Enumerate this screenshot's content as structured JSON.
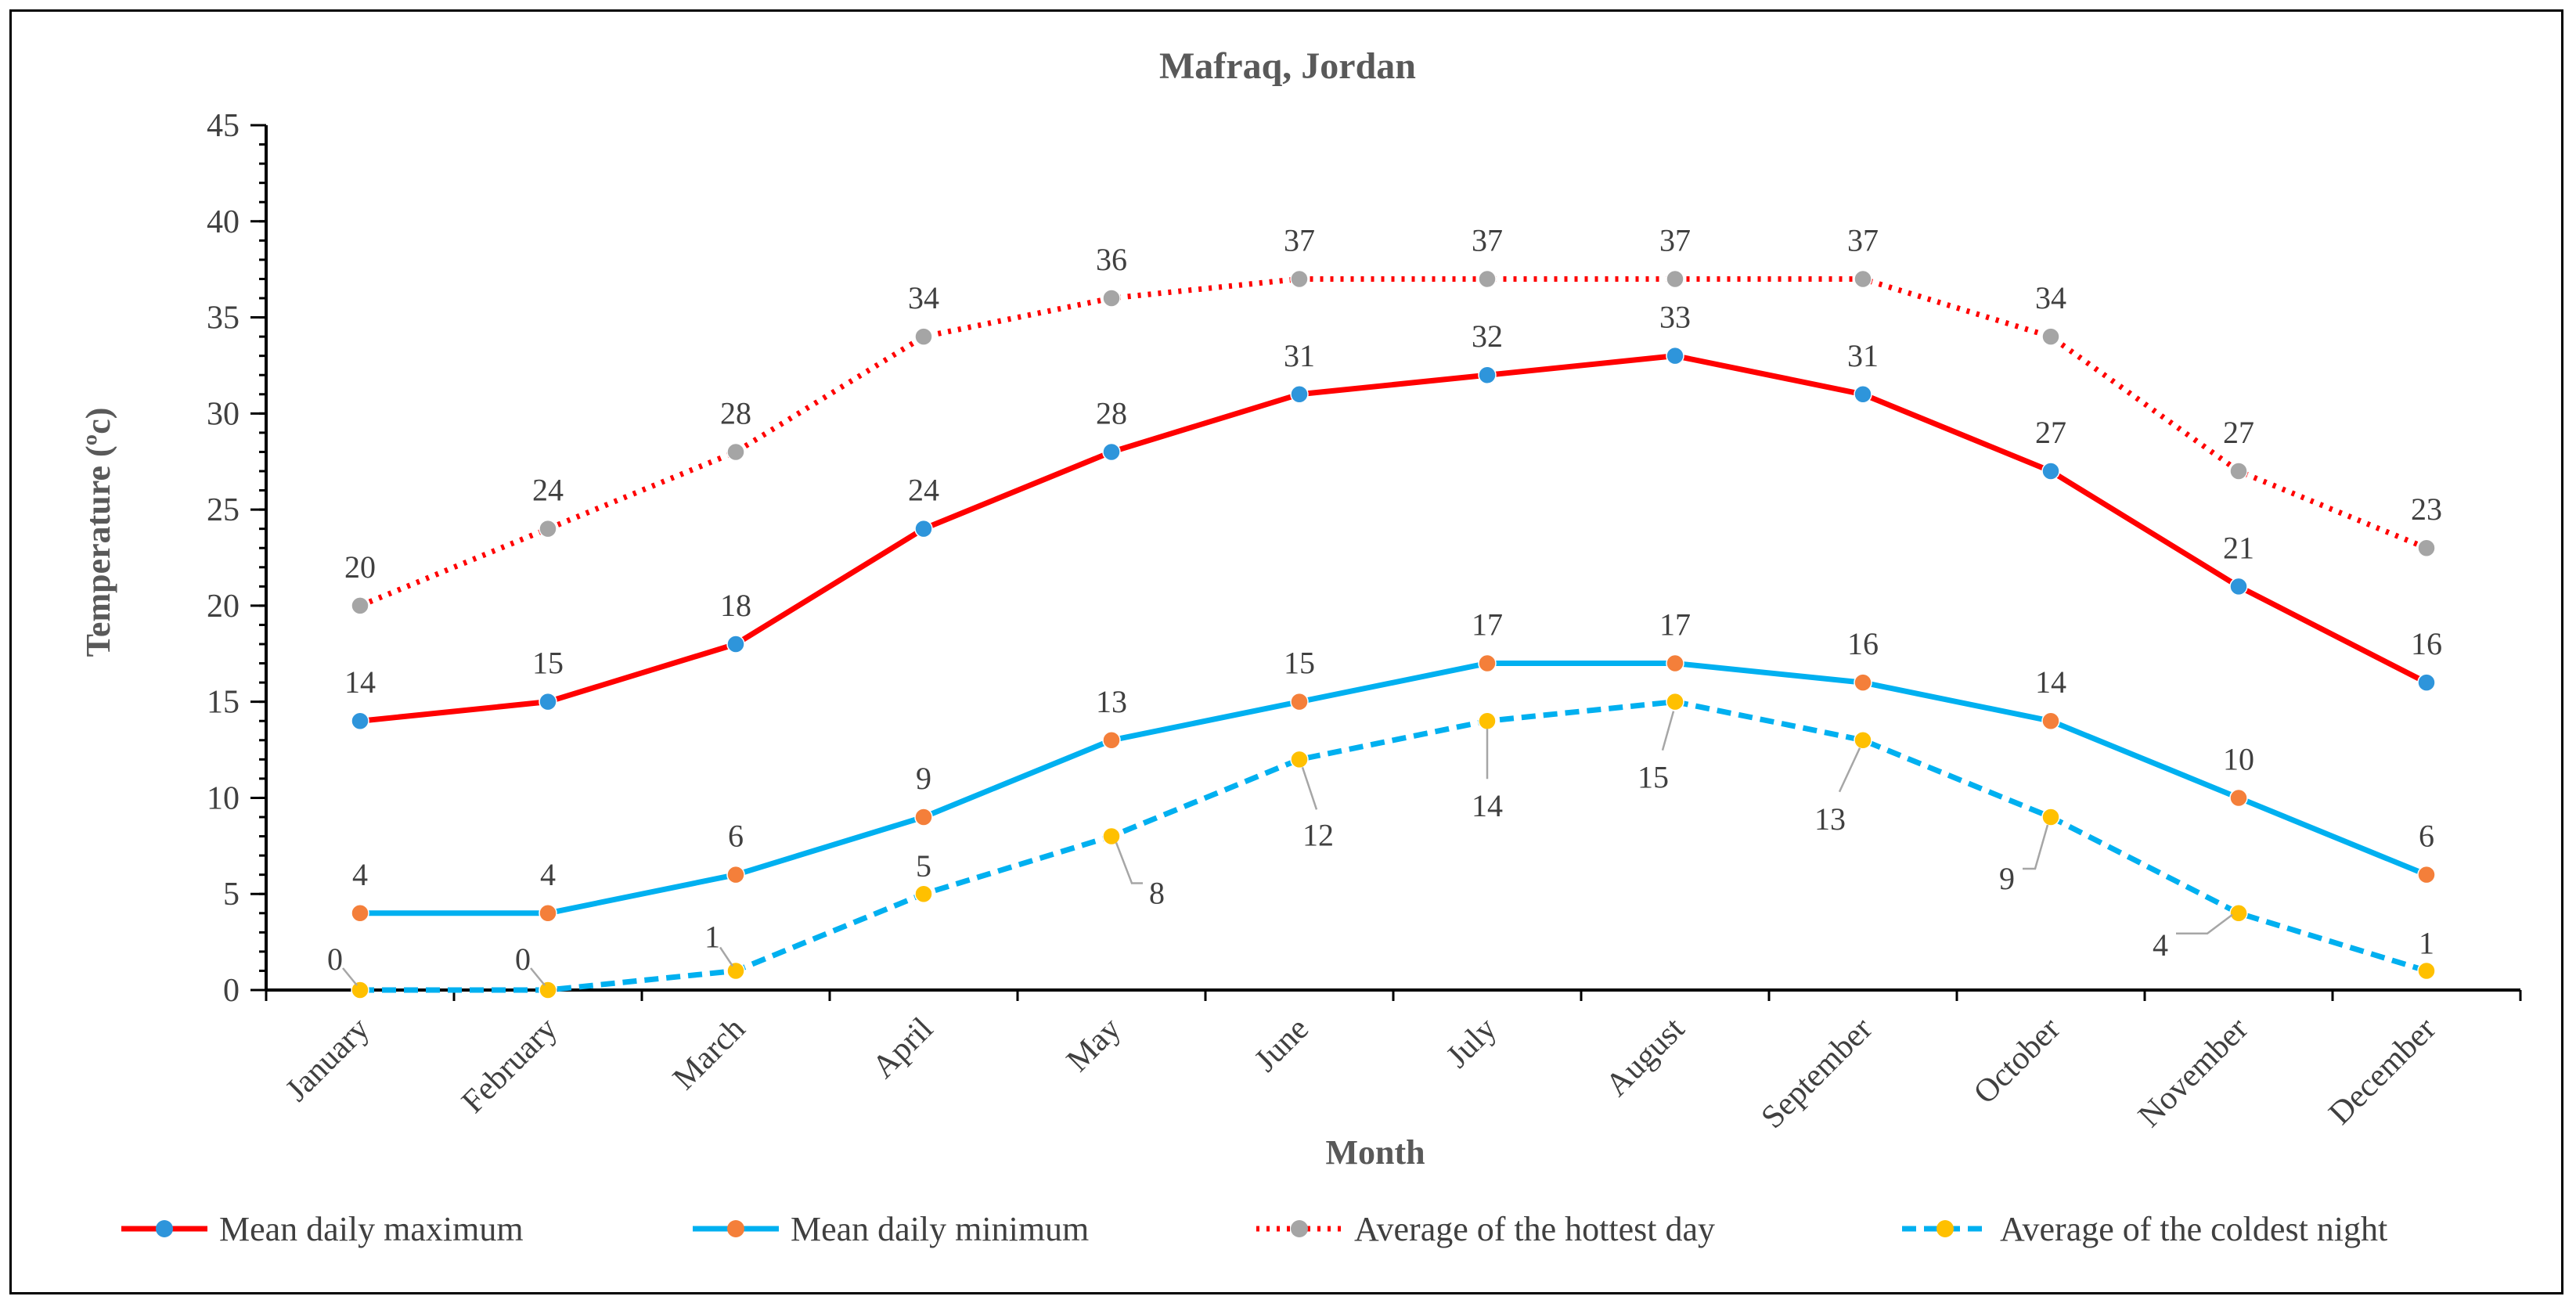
{
  "chart_data": {
    "type": "line",
    "title": "Mafraq, Jordan",
    "xlabel": "Month",
    "ylabel": "Temperature (ºc)",
    "ylim": [
      0,
      45
    ],
    "y_ticks": [
      0,
      5,
      10,
      15,
      20,
      25,
      30,
      35,
      40,
      45
    ],
    "categories": [
      "January",
      "February",
      "March",
      "April",
      "May",
      "June",
      "July",
      "August",
      "September",
      "October",
      "November",
      "December"
    ],
    "grid": false,
    "legend_position": "bottom",
    "series": [
      {
        "name": "Mean daily maximum",
        "values": [
          14,
          15,
          18,
          24,
          28,
          31,
          32,
          33,
          31,
          27,
          21,
          16
        ],
        "line_color": "#FF0000",
        "marker_color": "#2E95DB",
        "line_style": "solid",
        "label_position": "above"
      },
      {
        "name": "Mean daily minimum",
        "values": [
          4,
          4,
          6,
          9,
          13,
          15,
          17,
          17,
          16,
          14,
          10,
          6
        ],
        "line_color": "#00B0F0",
        "marker_color": "#F47F3A",
        "line_style": "solid",
        "label_position": "above"
      },
      {
        "name": "Average of the hottest day",
        "values": [
          20,
          24,
          28,
          34,
          36,
          37,
          37,
          37,
          37,
          34,
          27,
          23
        ],
        "line_color": "#FF0000",
        "marker_color": "#A5A5A5",
        "line_style": "dotted",
        "label_position": "above"
      },
      {
        "name": "Average of the coldest night",
        "values": [
          0,
          0,
          1,
          5,
          8,
          12,
          14,
          15,
          13,
          9,
          4,
          1
        ],
        "line_color": "#00B0F0",
        "marker_color": "#FFC000",
        "line_style": "dashed",
        "label_position": "callout"
      }
    ]
  }
}
